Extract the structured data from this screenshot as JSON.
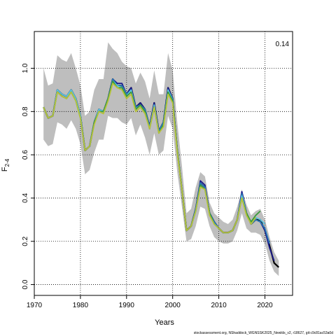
{
  "chart_data": {
    "type": "line",
    "xlabel": "Years",
    "ylabel": "F",
    "ylabel_sub": "2-4",
    "xlim": [
      1970,
      2026
    ],
    "ylim": [
      -0.05,
      1.17
    ],
    "xticks": [
      1970,
      1980,
      1990,
      2000,
      2010,
      2020
    ],
    "yticks": [
      0.0,
      0.2,
      0.4,
      0.6,
      0.8,
      1.0
    ],
    "xtick_labels": [
      "1970",
      "1980",
      "1990",
      "2000",
      "2010",
      "2020"
    ],
    "ytick_labels": [
      "0.0",
      "0.2",
      "0.4",
      "0.6",
      "0.8",
      "1.0"
    ],
    "grid": true,
    "annotation": "0.14",
    "footer": "stockassessment.org, NShaddock_WGNSSK2025_Newlds_v2, r18627, git:c9c81ac53a0d",
    "colors": {
      "band": "#bebebe",
      "base": "#000000",
      "peel_dark": "#1a1a8c",
      "peel_mid": "#2a7ab8",
      "peel_light": "#5cc4e0",
      "peel_green": "#3a9a3a",
      "peel_yellow": "#b6c23a"
    },
    "band": {
      "x": [
        1972,
        1973,
        1974,
        1975,
        1976,
        1977,
        1978,
        1979,
        1980,
        1981,
        1982,
        1983,
        1984,
        1985,
        1986,
        1987,
        1988,
        1989,
        1990,
        1991,
        1992,
        1993,
        1994,
        1995,
        1996,
        1997,
        1998,
        1999,
        2000,
        2001,
        2002,
        2003,
        2004,
        2005,
        2006,
        2007,
        2008,
        2009,
        2010,
        2011,
        2012,
        2013,
        2014,
        2015,
        2016,
        2017,
        2018,
        2019,
        2020,
        2021,
        2022,
        2023
      ],
      "upper": [
        1.0,
        0.92,
        0.93,
        1.06,
        1.04,
        1.03,
        1.07,
        1.0,
        0.92,
        0.78,
        0.8,
        0.9,
        0.95,
        0.95,
        1.12,
        1.09,
        1.07,
        1.03,
        1.01,
        1.0,
        0.93,
        0.98,
        0.94,
        0.86,
        0.99,
        0.88,
        0.88,
        1.07,
        0.99,
        0.75,
        0.55,
        0.33,
        0.35,
        0.45,
        0.52,
        0.5,
        0.38,
        0.33,
        0.31,
        0.29,
        0.28,
        0.3,
        0.36,
        0.44,
        0.37,
        0.32,
        0.34,
        0.35,
        0.3,
        0.22,
        0.15,
        0.11
      ],
      "lower": [
        0.67,
        0.64,
        0.65,
        0.75,
        0.74,
        0.72,
        0.76,
        0.72,
        0.65,
        0.51,
        0.53,
        0.61,
        0.67,
        0.67,
        0.78,
        0.77,
        0.77,
        0.75,
        0.74,
        0.77,
        0.69,
        0.74,
        0.68,
        0.6,
        0.7,
        0.6,
        0.62,
        0.78,
        0.72,
        0.52,
        0.36,
        0.2,
        0.21,
        0.27,
        0.36,
        0.35,
        0.27,
        0.22,
        0.2,
        0.19,
        0.19,
        0.2,
        0.25,
        0.33,
        0.26,
        0.24,
        0.24,
        0.23,
        0.19,
        0.11,
        0.06,
        0.04
      ]
    },
    "series": [
      {
        "x": [
          1972,
          1973,
          1974,
          1975,
          1976,
          1977,
          1978,
          1979,
          1980,
          1981,
          1982,
          1983,
          1984,
          1985,
          1986,
          1987,
          1988,
          1989,
          1990,
          1991,
          1992,
          1993,
          1994,
          1995,
          1996,
          1997,
          1998,
          1999,
          2000,
          2001,
          2002,
          2003,
          2004,
          2005,
          2006,
          2007,
          2008,
          2009,
          2010,
          2011,
          2012,
          2013,
          2014,
          2015,
          2016,
          2017,
          2018,
          2019,
          2020,
          2021,
          2022,
          2023
        ],
        "y": [
          0.82,
          0.77,
          0.78,
          0.9,
          0.88,
          0.87,
          0.9,
          0.86,
          0.78,
          0.62,
          0.64,
          0.75,
          0.81,
          0.8,
          0.86,
          0.95,
          0.92,
          0.92,
          0.88,
          0.91,
          0.82,
          0.84,
          0.81,
          0.73,
          0.84,
          0.71,
          0.75,
          0.91,
          0.86,
          0.62,
          0.44,
          0.25,
          0.27,
          0.35,
          0.47,
          0.45,
          0.33,
          0.29,
          0.26,
          0.24,
          0.24,
          0.25,
          0.3,
          0.42,
          0.33,
          0.28,
          0.3,
          0.3,
          0.25,
          0.18,
          0.1,
          0.08
        ],
        "color": "#000000"
      },
      {
        "x": [
          1972,
          1973,
          1974,
          1975,
          1976,
          1977,
          1978,
          1979,
          1980,
          1981,
          1982,
          1983,
          1984,
          1985,
          1986,
          1987,
          1988,
          1989,
          1990,
          1991,
          1992,
          1993,
          1994,
          1995,
          1996,
          1997,
          1998,
          1999,
          2000,
          2001,
          2002,
          2003,
          2004,
          2005,
          2006,
          2007,
          2008,
          2009,
          2010,
          2011,
          2012,
          2013,
          2014,
          2015,
          2016,
          2017,
          2018,
          2019,
          2020,
          2021,
          2022
        ],
        "y": [
          0.82,
          0.77,
          0.78,
          0.9,
          0.88,
          0.87,
          0.9,
          0.86,
          0.78,
          0.62,
          0.64,
          0.75,
          0.81,
          0.8,
          0.86,
          0.95,
          0.93,
          0.93,
          0.88,
          0.91,
          0.82,
          0.84,
          0.81,
          0.73,
          0.84,
          0.71,
          0.75,
          0.91,
          0.86,
          0.62,
          0.44,
          0.25,
          0.27,
          0.35,
          0.48,
          0.46,
          0.33,
          0.29,
          0.26,
          0.24,
          0.24,
          0.25,
          0.3,
          0.43,
          0.33,
          0.28,
          0.3,
          0.29,
          0.25,
          0.17,
          0.11
        ],
        "color": "#1a1a8c"
      },
      {
        "x": [
          1972,
          1973,
          1974,
          1975,
          1976,
          1977,
          1978,
          1979,
          1980,
          1981,
          1982,
          1983,
          1984,
          1985,
          1986,
          1987,
          1988,
          1989,
          1990,
          1991,
          1992,
          1993,
          1994,
          1995,
          1996,
          1997,
          1998,
          1999,
          2000,
          2001,
          2002,
          2003,
          2004,
          2005,
          2006,
          2007,
          2008,
          2009,
          2010,
          2011,
          2012,
          2013,
          2014,
          2015,
          2016,
          2017,
          2018,
          2019,
          2020,
          2021
        ],
        "y": [
          0.82,
          0.77,
          0.78,
          0.9,
          0.88,
          0.87,
          0.9,
          0.86,
          0.78,
          0.62,
          0.64,
          0.75,
          0.81,
          0.8,
          0.86,
          0.95,
          0.92,
          0.92,
          0.88,
          0.9,
          0.82,
          0.83,
          0.81,
          0.73,
          0.83,
          0.71,
          0.75,
          0.9,
          0.86,
          0.62,
          0.44,
          0.25,
          0.27,
          0.35,
          0.47,
          0.45,
          0.33,
          0.29,
          0.26,
          0.24,
          0.24,
          0.25,
          0.3,
          0.42,
          0.33,
          0.28,
          0.3,
          0.29,
          0.26,
          0.19
        ],
        "color": "#2a7ab8"
      },
      {
        "x": [
          1972,
          1973,
          1974,
          1975,
          1976,
          1977,
          1978,
          1979,
          1980,
          1981,
          1982,
          1983,
          1984,
          1985,
          1986,
          1987,
          1988,
          1989,
          1990,
          1991,
          1992,
          1993,
          1994,
          1995,
          1996,
          1997,
          1998,
          1999,
          2000,
          2001,
          2002,
          2003,
          2004,
          2005,
          2006,
          2007,
          2008,
          2009,
          2010,
          2011,
          2012,
          2013,
          2014,
          2015,
          2016,
          2017,
          2018,
          2019,
          2020
        ],
        "y": [
          0.82,
          0.77,
          0.78,
          0.9,
          0.88,
          0.87,
          0.9,
          0.86,
          0.78,
          0.62,
          0.64,
          0.75,
          0.81,
          0.8,
          0.86,
          0.94,
          0.92,
          0.91,
          0.87,
          0.9,
          0.81,
          0.83,
          0.8,
          0.72,
          0.83,
          0.7,
          0.74,
          0.9,
          0.85,
          0.62,
          0.44,
          0.25,
          0.27,
          0.34,
          0.46,
          0.44,
          0.33,
          0.28,
          0.26,
          0.24,
          0.24,
          0.25,
          0.3,
          0.41,
          0.33,
          0.28,
          0.31,
          0.3,
          0.28
        ],
        "color": "#5cc4e0"
      },
      {
        "x": [
          1972,
          1973,
          1974,
          1975,
          1976,
          1977,
          1978,
          1979,
          1980,
          1981,
          1982,
          1983,
          1984,
          1985,
          1986,
          1987,
          1988,
          1989,
          1990,
          1991,
          1992,
          1993,
          1994,
          1995,
          1996,
          1997,
          1998,
          1999,
          2000,
          2001,
          2002,
          2003,
          2004,
          2005,
          2006,
          2007,
          2008,
          2009,
          2010,
          2011,
          2012,
          2013,
          2014,
          2015,
          2016,
          2017,
          2018,
          2019
        ],
        "y": [
          0.82,
          0.77,
          0.78,
          0.89,
          0.87,
          0.86,
          0.89,
          0.85,
          0.77,
          0.62,
          0.64,
          0.75,
          0.8,
          0.8,
          0.86,
          0.94,
          0.91,
          0.91,
          0.87,
          0.89,
          0.81,
          0.83,
          0.8,
          0.72,
          0.82,
          0.7,
          0.74,
          0.89,
          0.85,
          0.62,
          0.44,
          0.25,
          0.27,
          0.34,
          0.46,
          0.44,
          0.33,
          0.28,
          0.26,
          0.24,
          0.24,
          0.25,
          0.3,
          0.4,
          0.33,
          0.29,
          0.32,
          0.34
        ],
        "color": "#3a9a3a"
      },
      {
        "x": [
          1972,
          1973,
          1974,
          1975,
          1976,
          1977,
          1978,
          1979,
          1980,
          1981,
          1982,
          1983,
          1984,
          1985,
          1986,
          1987,
          1988,
          1989,
          1990,
          1991,
          1992,
          1993,
          1994,
          1995,
          1996,
          1997,
          1998,
          1999,
          2000,
          2001,
          2002,
          2003,
          2004,
          2005,
          2006,
          2007,
          2008,
          2009,
          2010,
          2011,
          2012,
          2013,
          2014,
          2015,
          2016,
          2017,
          2018
        ],
        "y": [
          0.82,
          0.77,
          0.78,
          0.89,
          0.87,
          0.86,
          0.89,
          0.85,
          0.77,
          0.62,
          0.64,
          0.74,
          0.8,
          0.79,
          0.85,
          0.93,
          0.91,
          0.9,
          0.86,
          0.88,
          0.8,
          0.82,
          0.79,
          0.72,
          0.82,
          0.7,
          0.73,
          0.88,
          0.84,
          0.61,
          0.44,
          0.25,
          0.27,
          0.34,
          0.45,
          0.44,
          0.32,
          0.28,
          0.26,
          0.24,
          0.24,
          0.25,
          0.3,
          0.4,
          0.32,
          0.28,
          0.31
        ],
        "color": "#b6c23a"
      }
    ]
  }
}
